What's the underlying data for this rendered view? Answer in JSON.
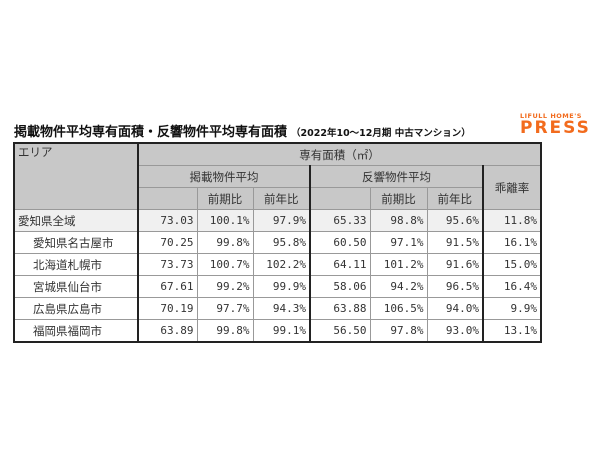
{
  "title": "掲載物件平均専有面積・反響物件平均専有面積",
  "subtitle": "（2022年10～12月期 中古マンション）",
  "logo": {
    "line1": "LIFULL HOME'S",
    "line2": "PRESS",
    "color": "#f26b1d"
  },
  "headers": {
    "area": "エリア",
    "area_size": "専有面積（㎡）",
    "listed_avg": "掲載物件平均",
    "inquiry_avg": "反響物件平均",
    "divergence": "乖離率",
    "qoq": "前期比",
    "yoy": "前年比"
  },
  "rows": [
    {
      "name": "愛知県全域",
      "values": [
        "73.03",
        "100.1%",
        "97.9%",
        "65.33",
        "98.8%",
        "95.6%",
        "11.8%"
      ]
    },
    {
      "name": "愛知県名古屋市",
      "values": [
        "70.25",
        "99.8%",
        "95.8%",
        "60.50",
        "97.1%",
        "91.5%",
        "16.1%"
      ]
    },
    {
      "name": "北海道札幌市",
      "values": [
        "73.73",
        "100.7%",
        "102.2%",
        "64.11",
        "101.2%",
        "91.6%",
        "15.0%"
      ]
    },
    {
      "name": "宮城県仙台市",
      "values": [
        "67.61",
        "99.2%",
        "99.9%",
        "58.06",
        "94.2%",
        "96.5%",
        "16.4%"
      ]
    },
    {
      "name": "広島県広島市",
      "values": [
        "70.19",
        "97.7%",
        "94.3%",
        "63.88",
        "106.5%",
        "94.0%",
        "9.9%"
      ]
    },
    {
      "name": "福岡県福岡市",
      "values": [
        "63.89",
        "99.8%",
        "99.1%",
        "56.50",
        "97.8%",
        "93.0%",
        "13.1%"
      ]
    }
  ]
}
